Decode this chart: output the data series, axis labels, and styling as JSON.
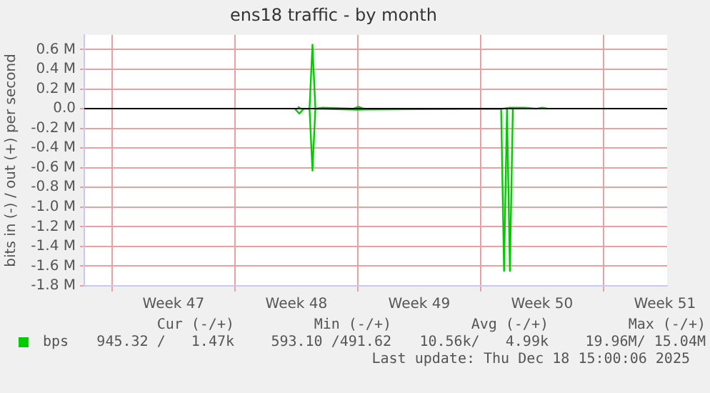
{
  "chart_data": {
    "type": "line",
    "title": "ens18 traffic - by month",
    "ylabel": "bits in (-) / out (+) per second",
    "xlim": [
      "2025-11-15T10:00",
      "2025-12-18T15:00"
    ],
    "xticks": [
      {
        "value": "2025-11-17T00:00",
        "label": null
      },
      {
        "value": "2025-11-20T12:00",
        "label": "Week 47"
      },
      {
        "value": "2025-11-24T00:00",
        "label": null
      },
      {
        "value": "2025-11-27T12:00",
        "label": "Week 48"
      },
      {
        "value": "2025-12-01T00:00",
        "label": null
      },
      {
        "value": "2025-12-04T12:00",
        "label": "Week 49"
      },
      {
        "value": "2025-12-08T00:00",
        "label": null
      },
      {
        "value": "2025-12-11T12:00",
        "label": "Week 50"
      },
      {
        "value": "2025-12-15T00:00",
        "label": null
      },
      {
        "value": "2025-12-18T12:00",
        "label": "Week 51"
      }
    ],
    "ylim": [
      -1.8,
      0.75
    ],
    "yticks": [
      {
        "value": 0.6,
        "label": "0.6 M"
      },
      {
        "value": 0.4,
        "label": "0.4 M"
      },
      {
        "value": 0.2,
        "label": "0.2 M"
      },
      {
        "value": 0,
        "label": "0.0"
      },
      {
        "value": -0.2,
        "label": "-0.2 M"
      },
      {
        "value": -0.4,
        "label": "-0.4 M"
      },
      {
        "value": -0.6,
        "label": "-0.6 M"
      },
      {
        "value": -0.8,
        "label": "-0.8 M"
      },
      {
        "value": -1.0,
        "label": "-1.0 M"
      },
      {
        "value": -1.2,
        "label": "-1.2 M"
      },
      {
        "value": -1.4,
        "label": "-1.4 M"
      },
      {
        "value": -1.6,
        "label": "-1.6 M"
      },
      {
        "value": -1.8,
        "label": "-1.8 M"
      }
    ],
    "grid": true,
    "legend": "bottom left",
    "marker": "none",
    "line_style": "solid",
    "ref_lines": [
      {
        "axis": "y",
        "value": 0,
        "color": "#000000"
      }
    ],
    "series": [
      {
        "name": "bps",
        "color": "#00cc00",
        "x": [
          "2025-11-27T14:00",
          "2025-11-27T18:00",
          "2025-11-28T06:00",
          "2025-11-28T10:00",
          "2025-11-28T14:00",
          "2025-11-29T00:00",
          "2025-11-30T18:00",
          "2025-12-01T01:00",
          "2025-12-01T08:00",
          "2025-12-09T06:00",
          "2025-12-09T16:00",
          "2025-12-10T12:00",
          "2025-12-11T04:00",
          "2025-12-11T12:00",
          "2025-12-11T20:00"
        ],
        "values": [
          0.02,
          0,
          0,
          0.65,
          0,
          0.01,
          0,
          0.02,
          0,
          0,
          0.01,
          0.01,
          0,
          0.01,
          0
        ]
      },
      {
        "color": "#00cc00",
        "x": [
          "2025-11-27T10:00",
          "2025-11-27T16:00",
          "2025-11-27T22:00",
          "2025-11-28T06:00",
          "2025-11-28T10:00",
          "2025-11-28T14:00",
          "2025-12-01T00:00",
          "2025-12-09T04:00",
          "2025-12-09T08:00",
          "2025-12-09T12:00",
          "2025-12-09T16:00",
          "2025-12-09T20:00"
        ],
        "values": [
          0,
          -0.05,
          0,
          0,
          -0.63,
          0,
          -0.01,
          0,
          -1.65,
          0,
          -1.65,
          0
        ]
      }
    ],
    "annotations": [
      "Cur (-/+)",
      "Min (-/+)",
      "Avg (-/+)",
      "Max (-/+)",
      "945.32 /   1.47k",
      "593.10 /491.62",
      "10.56k/   4.99k",
      "19.96M/ 15.04M",
      "Last update: Thu Dec 18 15:00:06 2025"
    ]
  }
}
